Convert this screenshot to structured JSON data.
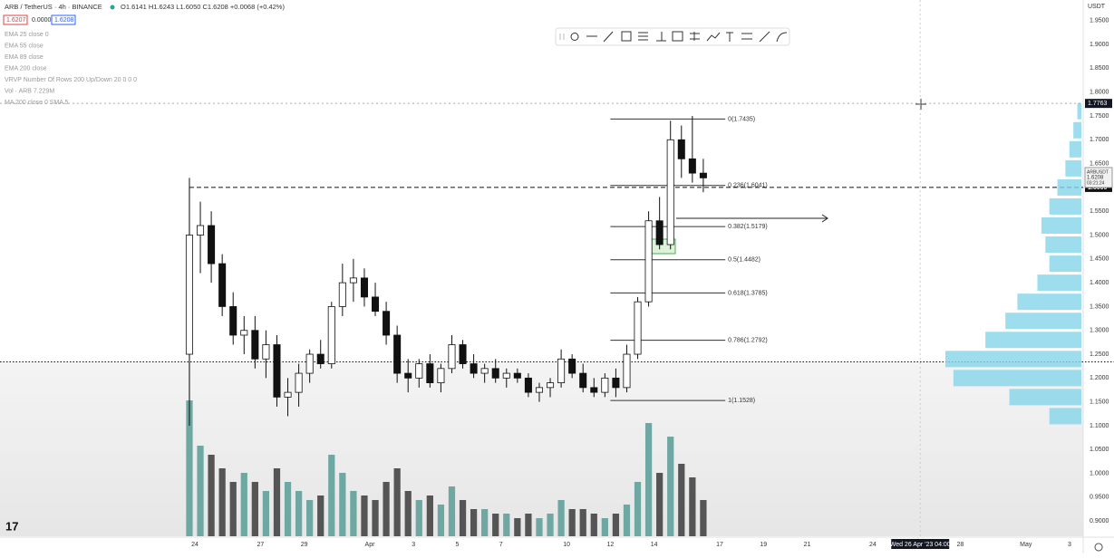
{
  "header": {
    "symbol": "ARB / TetherUS · 4h · BINANCE",
    "ohlc": "O1.6141 H1.6243 L1.6050 C1.6208 +0.0068 (+0.42%)",
    "bid": "1.6207",
    "spread": "0.0000",
    "ask": "1.6208"
  },
  "indicators": [
    "EMA 25 close 0",
    "EMA 55 close",
    "EMA 89 close",
    "EMA 200 close",
    "VRVP Number Of Rows 200 Up/Down 20  0  0  0",
    "Vol · ARB  7.229M",
    "MA 200 close 0 SMA 5"
  ],
  "chart_data": {
    "type": "candlestick",
    "currency": "USDT",
    "ylim": [
      0.868,
      1.9933
    ],
    "yticks": [
      {
        "value": 1.95,
        "label": "1.9500"
      },
      {
        "value": 1.9,
        "label": "1.9000"
      },
      {
        "value": 1.85,
        "label": "1.8500"
      },
      {
        "value": 1.8,
        "label": "1.8000"
      },
      {
        "value": 1.75,
        "label": "1.7500"
      },
      {
        "value": 1.7,
        "label": "1.7000"
      },
      {
        "value": 1.65,
        "label": "1.6500"
      },
      {
        "value": 1.55,
        "label": "1.5500"
      },
      {
        "value": 1.5,
        "label": "1.5000"
      },
      {
        "value": 1.45,
        "label": "1.4500"
      },
      {
        "value": 1.4,
        "label": "1.4000"
      },
      {
        "value": 1.35,
        "label": "1.3500"
      },
      {
        "value": 1.3,
        "label": "1.3000"
      },
      {
        "value": 1.25,
        "label": "1.2500"
      },
      {
        "value": 1.2,
        "label": "1.2000"
      },
      {
        "value": 1.15,
        "label": "1.1500"
      },
      {
        "value": 1.1,
        "label": "1.1000"
      },
      {
        "value": 1.05,
        "label": "1.0500"
      },
      {
        "value": 1.0,
        "label": "1.0000"
      },
      {
        "value": 0.95,
        "label": "0.9500"
      },
      {
        "value": 0.9,
        "label": "0.9000"
      }
    ],
    "xlim": [
      -8.912,
      40.622
    ],
    "xticks": [
      {
        "value": 0,
        "label": "24"
      },
      {
        "value": 3,
        "label": "27"
      },
      {
        "value": 5,
        "label": "29"
      },
      {
        "value": 8,
        "label": "Apr"
      },
      {
        "value": 10,
        "label": "3"
      },
      {
        "value": 12,
        "label": "5"
      },
      {
        "value": 14,
        "label": "7"
      },
      {
        "value": 17,
        "label": "10"
      },
      {
        "value": 19,
        "label": "12"
      },
      {
        "value": 21,
        "label": "14"
      },
      {
        "value": 24,
        "label": "17"
      },
      {
        "value": 26,
        "label": "19"
      },
      {
        "value": 28,
        "label": "21"
      },
      {
        "value": 31,
        "label": "24"
      },
      {
        "value": 35,
        "label": "28"
      },
      {
        "value": 38,
        "label": "May"
      },
      {
        "value": 40,
        "label": "3"
      }
    ],
    "x": [
      -0.25,
      0.25,
      0.75,
      1.25,
      1.75,
      2.25,
      2.75,
      3.25,
      3.75,
      4.25,
      4.75,
      5.25,
      5.75,
      6.25,
      6.75,
      7.25,
      7.75,
      8.25,
      8.75,
      9.25,
      9.75,
      10.25,
      10.75,
      11.25,
      11.75,
      12.25,
      12.75,
      13.25,
      13.75,
      14.25,
      14.75,
      15.25,
      15.75,
      16.25,
      16.75,
      17.25,
      17.75,
      18.25,
      18.75,
      19.25,
      19.75,
      20.25,
      20.75,
      21.25,
      21.75,
      22.25,
      22.75,
      23.25
    ],
    "open": [
      1.25,
      1.5,
      1.52,
      1.44,
      1.35,
      1.29,
      1.3,
      1.24,
      1.27,
      1.16,
      1.17,
      1.21,
      1.25,
      1.23,
      1.35,
      1.4,
      1.41,
      1.37,
      1.34,
      1.29,
      1.21,
      1.2,
      1.23,
      1.19,
      1.22,
      1.27,
      1.23,
      1.21,
      1.22,
      1.2,
      1.21,
      1.2,
      1.17,
      1.18,
      1.19,
      1.24,
      1.21,
      1.18,
      1.17,
      1.2,
      1.18,
      1.25,
      1.36,
      1.53,
      1.48,
      1.7,
      1.66,
      1.63
    ],
    "high": [
      1.62,
      1.57,
      1.55,
      1.46,
      1.38,
      1.33,
      1.33,
      1.3,
      1.29,
      1.2,
      1.23,
      1.26,
      1.28,
      1.36,
      1.44,
      1.45,
      1.43,
      1.4,
      1.36,
      1.31,
      1.24,
      1.24,
      1.25,
      1.23,
      1.29,
      1.28,
      1.25,
      1.23,
      1.24,
      1.22,
      1.22,
      1.21,
      1.19,
      1.2,
      1.26,
      1.25,
      1.23,
      1.2,
      1.21,
      1.22,
      1.27,
      1.37,
      1.55,
      1.58,
      1.74,
      1.73,
      1.75,
      1.66
    ],
    "low": [
      1.1,
      1.42,
      1.4,
      1.33,
      1.27,
      1.25,
      1.22,
      1.2,
      1.14,
      1.12,
      1.14,
      1.19,
      1.22,
      1.22,
      1.33,
      1.36,
      1.35,
      1.33,
      1.27,
      1.19,
      1.17,
      1.18,
      1.18,
      1.17,
      1.21,
      1.22,
      1.2,
      1.19,
      1.19,
      1.18,
      1.19,
      1.16,
      1.15,
      1.16,
      1.18,
      1.2,
      1.17,
      1.16,
      1.16,
      1.16,
      1.17,
      1.24,
      1.35,
      1.47,
      1.47,
      1.62,
      1.61,
      1.59
    ],
    "close": [
      1.5,
      1.52,
      1.44,
      1.35,
      1.29,
      1.3,
      1.24,
      1.27,
      1.16,
      1.17,
      1.21,
      1.25,
      1.23,
      1.35,
      1.4,
      1.41,
      1.37,
      1.34,
      1.29,
      1.21,
      1.2,
      1.23,
      1.19,
      1.22,
      1.27,
      1.23,
      1.21,
      1.22,
      1.2,
      1.21,
      1.2,
      1.17,
      1.18,
      1.19,
      1.24,
      1.21,
      1.18,
      1.17,
      1.2,
      1.18,
      1.25,
      1.36,
      1.53,
      1.48,
      1.7,
      1.66,
      1.63,
      1.62
    ],
    "volume": [
      30,
      20,
      18,
      15,
      12,
      14,
      12,
      10,
      15,
      12,
      10,
      8,
      9,
      18,
      14,
      10,
      9,
      8,
      12,
      15,
      10,
      8,
      9,
      7,
      11,
      8,
      6,
      6,
      5,
      5,
      4,
      5,
      4,
      5,
      8,
      6,
      6,
      5,
      4,
      5,
      7,
      12,
      25,
      14,
      22,
      16,
      13,
      8
    ],
    "up_color": "#ffffff",
    "down_color": "#111111",
    "volume_up_color": "#6fa8a2",
    "volume_down_color": "#555555",
    "fib": [
      {
        "value": 1.7435,
        "label": "0(1.7435)"
      },
      {
        "value": 1.6041,
        "label": "0.236(1.6041)"
      },
      {
        "value": 1.5179,
        "label": "0.382(1.5179)"
      },
      {
        "value": 1.4482,
        "label": "0.5(1.4482)"
      },
      {
        "value": 1.3785,
        "label": "0.618(1.3785)"
      },
      {
        "value": 1.2792,
        "label": "0.786(1.2792)"
      },
      {
        "value": 1.1528,
        "label": "1(1.1528)"
      }
    ],
    "fib_range": [
      19,
      25.5
    ],
    "levels": [
      {
        "value": 1.6,
        "label": "1.6000",
        "style": "dashed"
      },
      {
        "value": 1.234,
        "style": "dotted"
      }
    ],
    "last_price": {
      "symbol": "ARBUSDT",
      "value": 1.6208,
      "label": "1.6208",
      "countdown": "03:21:24"
    },
    "crosshair": {
      "value": 1.7763,
      "label": "1.7763",
      "x": 33.17,
      "time": "Wed 26 Apr '23  04:00"
    },
    "profile": {
      "prices": [
        1.12,
        1.16,
        1.2,
        1.24,
        1.28,
        1.32,
        1.36,
        1.4,
        1.44,
        1.48,
        1.52,
        1.56,
        1.6,
        1.64,
        1.68,
        1.72,
        1.76
      ],
      "sizes": [
        40,
        90,
        160,
        170,
        120,
        95,
        80,
        55,
        40,
        45,
        50,
        40,
        30,
        20,
        15,
        10,
        5
      ],
      "color": "#84d4e8"
    }
  }
}
